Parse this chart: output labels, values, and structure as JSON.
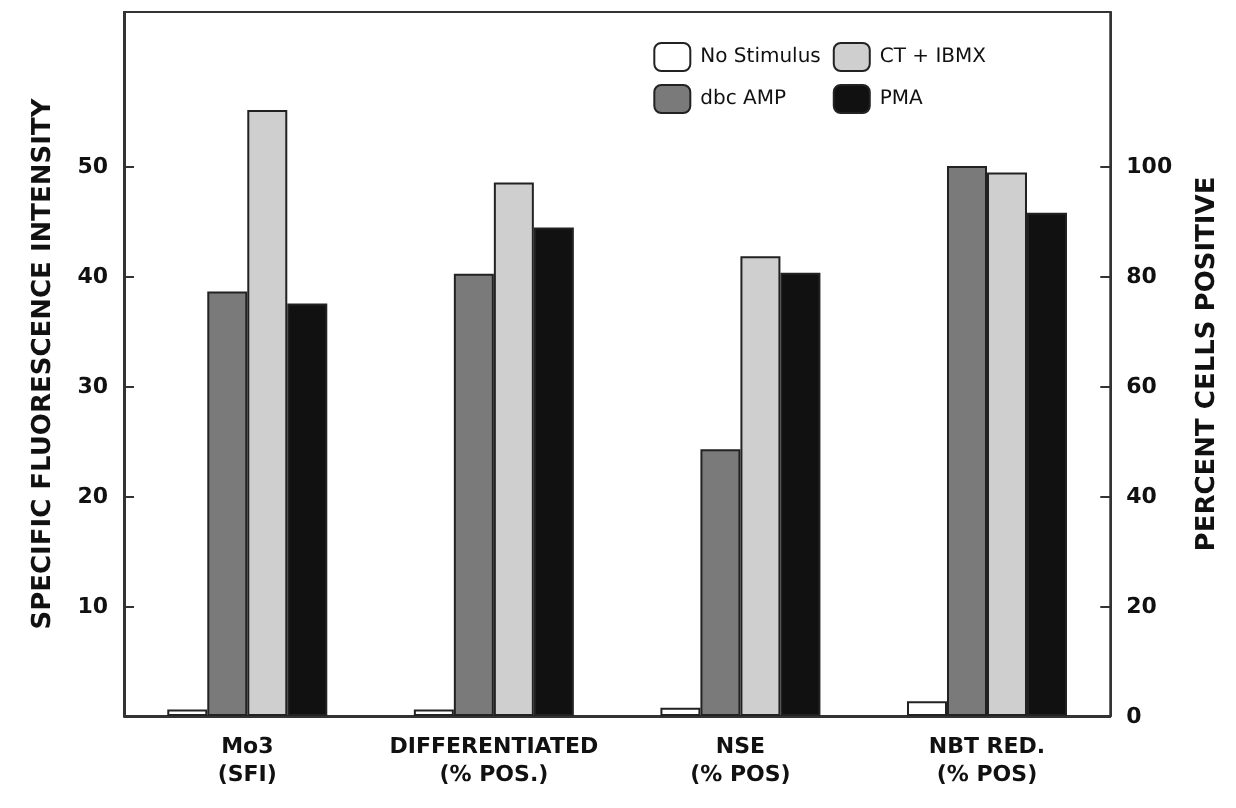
{
  "chart_data": {
    "type": "bar",
    "ylabel": "SPECIFIC FLUORESCENCE INTENSITY",
    "y2label": "PERCENT CELLS POSITIVE",
    "categories": [
      "Mo3\n(SFI)",
      "DIFFERENTIATED\n(% POS.)",
      "NSE\n(% POS)",
      "NBT RED.\n(% POS)"
    ],
    "series": [
      {
        "name": "No Stimulus",
        "color": "#ffffff",
        "values": [
          0.6,
          null,
          null,
          null
        ]
      },
      {
        "name": "dbc AMP",
        "color": "#7a7a7a",
        "values": [
          38.6,
          null,
          null,
          null
        ]
      },
      {
        "name": "CT + IBMX",
        "color": "#cfcfcf",
        "values": [
          55.1,
          null,
          null,
          null
        ]
      },
      {
        "name": "PMA",
        "color": "#111111",
        "values": [
          37.5,
          null,
          null,
          null
        ]
      },
      {
        "color": "#ffffff",
        "axis": "y2",
        "values": [
          null,
          1.2,
          1.5,
          2.7
        ]
      },
      {
        "color": "#7a7a7a",
        "axis": "y2",
        "values": [
          null,
          80.4,
          48.5,
          100
        ]
      },
      {
        "color": "#cfcfcf",
        "axis": "y2",
        "values": [
          null,
          97,
          83.6,
          98.8
        ]
      },
      {
        "color": "#111111",
        "axis": "y2",
        "values": [
          null,
          88.8,
          80.6,
          91.5
        ]
      }
    ],
    "ylim": [
      0,
      64
    ],
    "yticks": [
      10,
      20,
      30,
      40,
      50
    ],
    "y2lim": [
      0,
      128
    ],
    "y2ticks": [
      0,
      20,
      40,
      60,
      80,
      100
    ],
    "grid": false,
    "legend": "top right"
  }
}
